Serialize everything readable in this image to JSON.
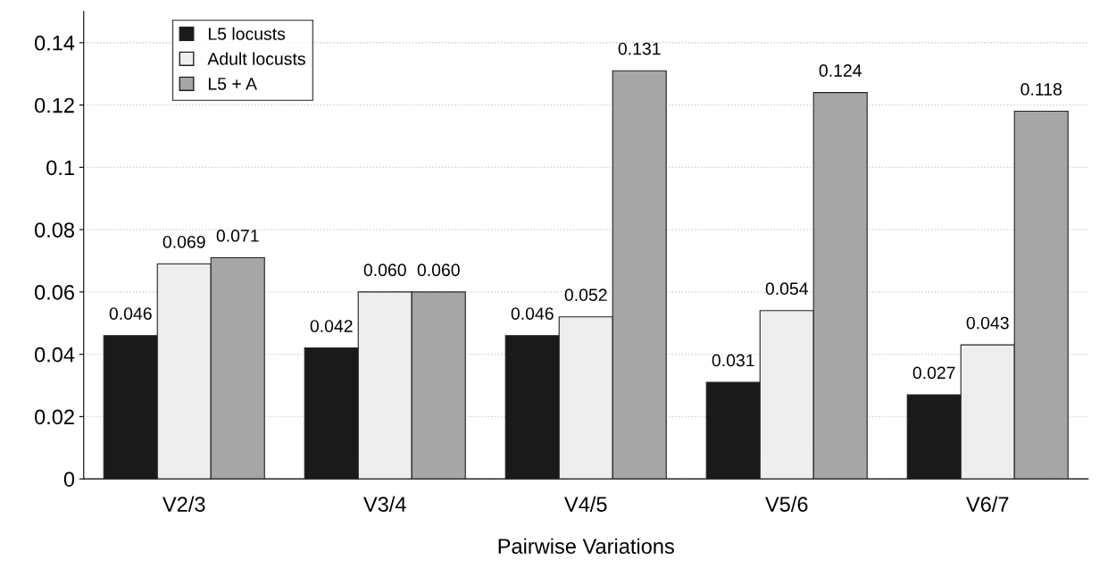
{
  "chart_data": {
    "type": "bar",
    "xlabel": "Pairwise Variations",
    "categories": [
      "V2/3",
      "V3/4",
      "V4/5",
      "V5/6",
      "V6/7"
    ],
    "series": [
      {
        "name": "L5 locusts",
        "color": "#1a1a1a",
        "values": [
          0.046,
          0.042,
          0.046,
          0.031,
          0.027
        ],
        "value_labels": [
          "0.046",
          "0.042",
          "0.046",
          "0.031",
          "0.027"
        ]
      },
      {
        "name": "Adult locusts",
        "color": "#eeeeee",
        "values": [
          0.069,
          0.06,
          0.052,
          0.054,
          0.043
        ],
        "value_labels": [
          "0.069",
          "0.060",
          "0.052",
          "0.054",
          "0.043"
        ]
      },
      {
        "name": "L5 + A",
        "color": "#a6a6a6",
        "values": [
          0.071,
          0.06,
          0.131,
          0.124,
          0.118
        ],
        "value_labels": [
          "0.071",
          "0.060",
          "0.131",
          "0.124",
          "0.118"
        ]
      }
    ],
    "ylim": [
      0,
      0.15
    ],
    "yticks": [
      0,
      0.02,
      0.04,
      0.06,
      0.08,
      0.1,
      0.12,
      0.14
    ],
    "grid": "y",
    "legend": "top left"
  }
}
